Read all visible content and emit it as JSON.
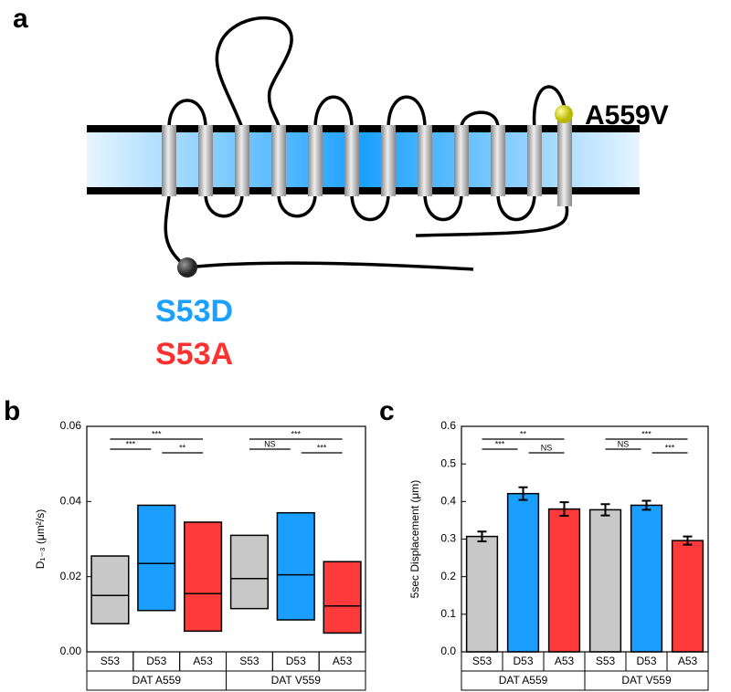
{
  "diagram": {
    "label": "a",
    "site_top": "A559V",
    "site_bottom": [
      "S53D",
      "S53A"
    ]
  },
  "chart_data": [
    {
      "type": "box",
      "label": "b",
      "ylabel": "D₁₋₃ (μm²/s)",
      "categories": [
        "S53",
        "D53",
        "A53",
        "S53",
        "D53",
        "A53"
      ],
      "groups": [
        "DAT A559",
        "DAT V559"
      ],
      "low": [
        0.0075,
        0.011,
        0.0055,
        0.0115,
        0.0085,
        0.005
      ],
      "median": [
        0.015,
        0.0235,
        0.0155,
        0.0195,
        0.0205,
        0.0122
      ],
      "high": [
        0.0255,
        0.039,
        0.0345,
        0.031,
        0.037,
        0.024
      ],
      "colors": [
        "#c8c8c8",
        "#1a9fff",
        "#ff3a3a",
        "#c8c8c8",
        "#1a9fff",
        "#ff3a3a"
      ],
      "ylim": [
        0,
        0.06
      ],
      "yticks": [
        {
          "value": 0,
          "label": "0.00"
        },
        {
          "value": 0.02,
          "label": "0.02"
        },
        {
          "value": 0.04,
          "label": "0.04"
        },
        {
          "value": 0.06,
          "label": "0.06"
        }
      ],
      "significance": [
        "***",
        "***",
        "**",
        "***",
        "NS",
        "***"
      ]
    },
    {
      "type": "bar",
      "label": "c",
      "ylabel": "5sec Displacement (μm)",
      "categories": [
        "S53",
        "D53",
        "A53",
        "S53",
        "D53",
        "A53"
      ],
      "groups": [
        "DAT A559",
        "DAT V559"
      ],
      "values": [
        0.307,
        0.421,
        0.38,
        0.378,
        0.39,
        0.296
      ],
      "errors": [
        0.013,
        0.017,
        0.018,
        0.015,
        0.012,
        0.011
      ],
      "colors": [
        "#c8c8c8",
        "#1a9fff",
        "#ff3a3a",
        "#c8c8c8",
        "#1a9fff",
        "#ff3a3a"
      ],
      "ylim": [
        0,
        0.6
      ],
      "yticks": [
        {
          "value": 0,
          "label": "0.0"
        },
        0.1,
        0.2,
        0.3,
        0.4,
        0.5,
        0.6
      ],
      "significance": [
        "**",
        "***",
        "NS",
        "***",
        "NS",
        "***"
      ]
    }
  ]
}
